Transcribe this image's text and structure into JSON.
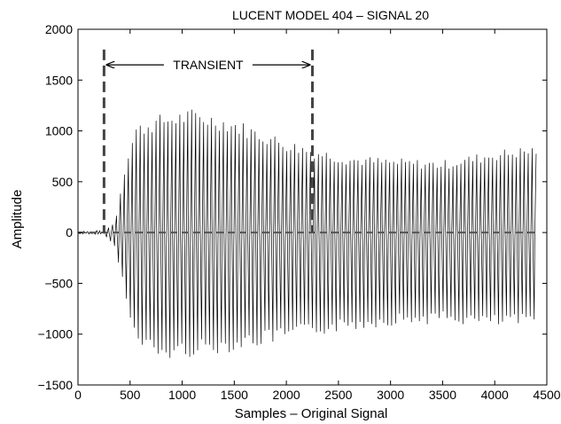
{
  "chart_data": {
    "type": "line",
    "title": "LUCENT MODEL 404 – SIGNAL 20",
    "xlabel": "Samples – Original Signal",
    "ylabel": "Amplitude",
    "xlim": [
      0,
      4500
    ],
    "ylim": [
      -1500,
      2000
    ],
    "xticks": [
      0,
      500,
      1000,
      1500,
      2000,
      2500,
      3000,
      3500,
      4000,
      4500
    ],
    "yticks": [
      -1500,
      -1000,
      -500,
      0,
      500,
      1000,
      1500,
      2000
    ],
    "grid": false,
    "series": [
      {
        "x_end": 4400,
        "onset": 250,
        "period": 38,
        "envelope": [
          {
            "x": 0,
            "upper": 15,
            "lower": -15
          },
          {
            "x": 250,
            "upper": 20,
            "lower": -20
          },
          {
            "x": 350,
            "upper": 100,
            "lower": -150
          },
          {
            "x": 450,
            "upper": 700,
            "lower": -600
          },
          {
            "x": 550,
            "upper": 1050,
            "lower": -1100
          },
          {
            "x": 800,
            "upper": 1150,
            "lower": -1250
          },
          {
            "x": 1100,
            "upper": 1200,
            "lower": -1200
          },
          {
            "x": 1500,
            "upper": 1100,
            "lower": -1150
          },
          {
            "x": 2000,
            "upper": 900,
            "lower": -1050
          },
          {
            "x": 2250,
            "upper": 830,
            "lower": -1000
          },
          {
            "x": 2600,
            "upper": 750,
            "lower": -950
          },
          {
            "x": 3000,
            "upper": 720,
            "lower": -900
          },
          {
            "x": 3500,
            "upper": 700,
            "lower": -880
          },
          {
            "x": 4000,
            "upper": 800,
            "lower": -920
          },
          {
            "x": 4400,
            "upper": 850,
            "lower": -900
          }
        ]
      }
    ],
    "annotations": {
      "zero_line": {
        "x_start": 0,
        "x_end": 4400,
        "y": 0
      },
      "transient_markers": {
        "x_start": 250,
        "x_end": 2250,
        "y_top": 1800
      },
      "transient_arrow": {
        "y": 1650,
        "text": "TRANSIENT"
      }
    }
  }
}
